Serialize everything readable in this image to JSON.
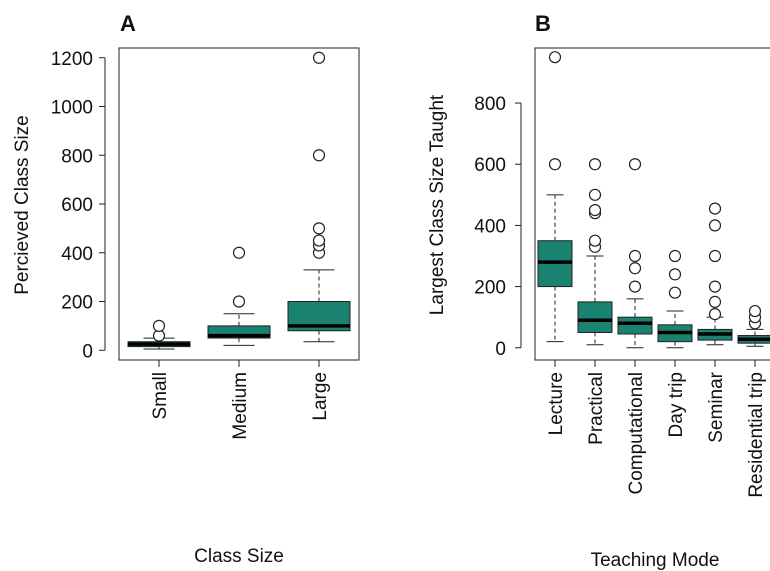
{
  "chart_data": [
    {
      "type": "box",
      "panel_label": "A",
      "xlabel": "Class Size",
      "ylabel": "Percieved Class Size",
      "ylim": [
        -40,
        1240
      ],
      "yticks": [
        0,
        200,
        400,
        600,
        800,
        1000,
        1200
      ],
      "categories": [
        "Small",
        "Medium",
        "Large"
      ],
      "boxes": [
        {
          "q1": 15,
          "median": 25,
          "q3": 35,
          "whisker_low": 5,
          "whisker_high": 50,
          "outliers": [
            60,
            100
          ]
        },
        {
          "q1": 50,
          "median": 60,
          "q3": 100,
          "whisker_low": 20,
          "whisker_high": 150,
          "outliers": [
            200,
            400
          ]
        },
        {
          "q1": 80,
          "median": 100,
          "q3": 200,
          "whisker_low": 35,
          "whisker_high": 330,
          "outliers": [
            400,
            430,
            450,
            500,
            800,
            1200
          ]
        }
      ],
      "fill_color": "#1a8270"
    },
    {
      "type": "box",
      "panel_label": "B",
      "xlabel": "Teaching Mode",
      "ylabel": "Largest Class Size Taught",
      "ylim": [
        -40,
        980
      ],
      "yticks": [
        0,
        200,
        400,
        600,
        800
      ],
      "categories": [
        "Lecture",
        "Practical",
        "Computational",
        "Day trip",
        "Seminar",
        "Residential trip"
      ],
      "boxes": [
        {
          "q1": 200,
          "median": 280,
          "q3": 350,
          "whisker_low": 20,
          "whisker_high": 500,
          "outliers": [
            600,
            950
          ]
        },
        {
          "q1": 50,
          "median": 90,
          "q3": 150,
          "whisker_low": 10,
          "whisker_high": 300,
          "outliers": [
            330,
            350,
            440,
            450,
            500,
            600
          ]
        },
        {
          "q1": 45,
          "median": 80,
          "q3": 100,
          "whisker_low": 0,
          "whisker_high": 160,
          "outliers": [
            200,
            260,
            300,
            600
          ]
        },
        {
          "q1": 20,
          "median": 50,
          "q3": 75,
          "whisker_low": 0,
          "whisker_high": 120,
          "outliers": [
            180,
            240,
            300
          ]
        },
        {
          "q1": 25,
          "median": 45,
          "q3": 60,
          "whisker_low": 10,
          "whisker_high": 100,
          "outliers": [
            110,
            150,
            200,
            300,
            400,
            455
          ]
        },
        {
          "q1": 15,
          "median": 28,
          "q3": 40,
          "whisker_low": 5,
          "whisker_high": 60,
          "outliers": [
            80,
            100,
            120
          ]
        }
      ],
      "fill_color": "#1a8270"
    }
  ]
}
